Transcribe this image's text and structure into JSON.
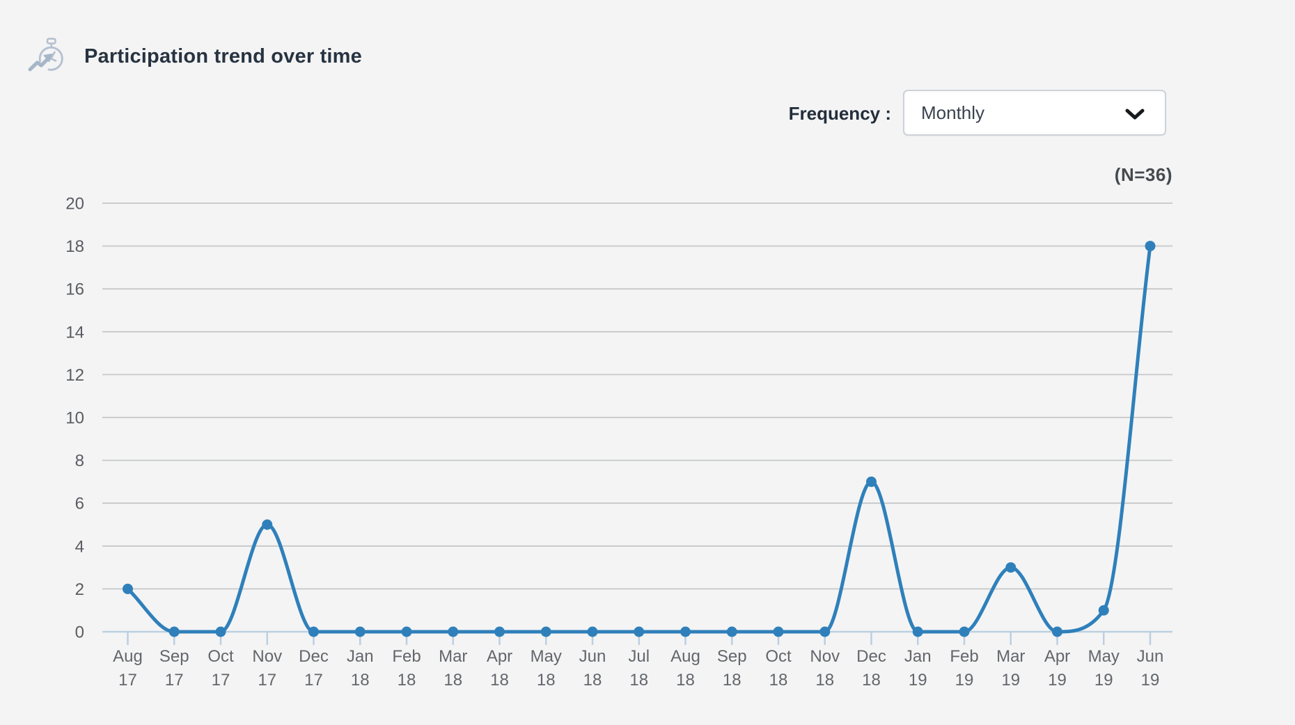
{
  "header": {
    "title": "Participation trend over time",
    "icon": "stopwatch-trend-icon"
  },
  "controls": {
    "frequency_label": "Frequency :",
    "frequency_value": "Monthly"
  },
  "chart_data": {
    "type": "line",
    "title": "Participation trend over time",
    "n_label": "(N=36)",
    "categories": [
      "Aug 17",
      "Sep 17",
      "Oct 17",
      "Nov 17",
      "Dec 17",
      "Jan 18",
      "Feb 18",
      "Mar 18",
      "Apr 18",
      "May 18",
      "Jun 18",
      "Jul 18",
      "Aug 18",
      "Sep 18",
      "Oct 18",
      "Nov 18",
      "Dec 18",
      "Jan 19",
      "Feb 19",
      "Mar 19",
      "Apr 19",
      "May 19",
      "Jun 19"
    ],
    "values": [
      2,
      0,
      0,
      5,
      0,
      0,
      0,
      0,
      0,
      0,
      0,
      0,
      0,
      0,
      0,
      0,
      7,
      0,
      0,
      3,
      0,
      1,
      18
    ],
    "y_ticks": [
      0,
      2,
      4,
      6,
      8,
      10,
      12,
      14,
      16,
      18,
      20
    ],
    "ylim": [
      0,
      20
    ],
    "xlabel": "",
    "ylabel": "",
    "grid": true,
    "legend": "none",
    "colors": {
      "line": "#2f80ba",
      "point": "#2f80ba",
      "gridline": "#c6c7c8",
      "baseline": "#bccfe0",
      "axis_text": "#63666a",
      "background": "#f4f4f5"
    }
  }
}
